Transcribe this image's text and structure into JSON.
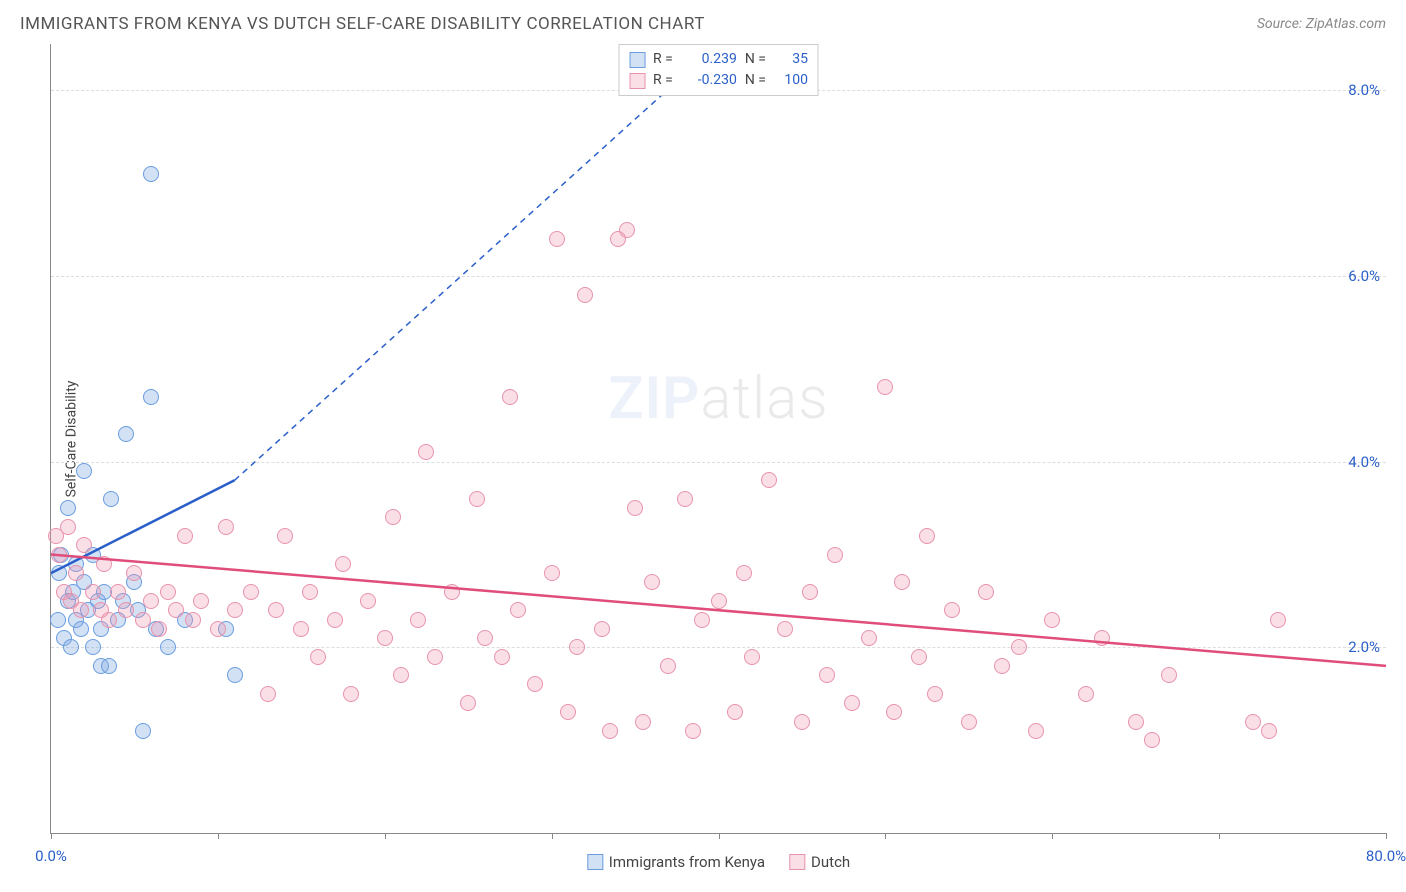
{
  "header": {
    "title": "IMMIGRANTS FROM KENYA VS DUTCH SELF-CARE DISABILITY CORRELATION CHART",
    "source_prefix": "Source: ",
    "source_name": "ZipAtlas.com"
  },
  "chart": {
    "type": "scatter",
    "ylabel": "Self-Care Disability",
    "xlim": [
      0,
      80
    ],
    "ylim": [
      0,
      8.5
    ],
    "background_color": "#ffffff",
    "grid_color": "#dddddd",
    "axis_color": "#888888",
    "label_color": "#444444",
    "xticks": [
      {
        "v": 0,
        "label": "0.0%",
        "show_label": true
      },
      {
        "v": 10,
        "label": "",
        "show_label": false
      },
      {
        "v": 20,
        "label": "",
        "show_label": false
      },
      {
        "v": 30,
        "label": "",
        "show_label": false
      },
      {
        "v": 40,
        "label": "",
        "show_label": false
      },
      {
        "v": 50,
        "label": "",
        "show_label": false
      },
      {
        "v": 60,
        "label": "",
        "show_label": false
      },
      {
        "v": 70,
        "label": "",
        "show_label": false
      },
      {
        "v": 80,
        "label": "80.0%",
        "show_label": true
      }
    ],
    "xtick_label_color": "#2a5fc9",
    "yticks": [
      {
        "v": 2.0,
        "label": "2.0%"
      },
      {
        "v": 4.0,
        "label": "4.0%"
      },
      {
        "v": 6.0,
        "label": "6.0%"
      },
      {
        "v": 8.0,
        "label": "8.0%"
      }
    ],
    "ytick_label_color": "#2a5fc9",
    "series": [
      {
        "name": "Immigrants from Kenya",
        "fill": "rgba(130,170,225,0.35)",
        "stroke": "#6a9de0",
        "line_color": "#2a5fc9",
        "trend": {
          "x1": 0,
          "y1": 2.8,
          "x2": 11,
          "y2": 3.8,
          "dash_to_x": 40,
          "dash_to_y": 8.5
        },
        "R": "0.239",
        "N": "35",
        "points": [
          [
            0.4,
            2.3
          ],
          [
            0.5,
            2.8
          ],
          [
            0.6,
            3.0
          ],
          [
            0.8,
            2.1
          ],
          [
            1.0,
            2.5
          ],
          [
            1.0,
            3.5
          ],
          [
            1.2,
            2.0
          ],
          [
            1.3,
            2.6
          ],
          [
            1.5,
            2.3
          ],
          [
            1.5,
            2.9
          ],
          [
            1.8,
            2.2
          ],
          [
            2.0,
            2.7
          ],
          [
            2.0,
            3.9
          ],
          [
            2.2,
            2.4
          ],
          [
            2.5,
            2.0
          ],
          [
            2.5,
            3.0
          ],
          [
            2.8,
            2.5
          ],
          [
            3.0,
            1.8
          ],
          [
            3.0,
            2.2
          ],
          [
            3.2,
            2.6
          ],
          [
            3.5,
            1.8
          ],
          [
            3.6,
            3.6
          ],
          [
            4.0,
            2.3
          ],
          [
            4.3,
            2.5
          ],
          [
            4.5,
            4.3
          ],
          [
            5.0,
            2.7
          ],
          [
            5.2,
            2.4
          ],
          [
            5.5,
            1.1
          ],
          [
            6.0,
            7.1
          ],
          [
            6.0,
            4.7
          ],
          [
            6.3,
            2.2
          ],
          [
            7.0,
            2.0
          ],
          [
            8.0,
            2.3
          ],
          [
            10.5,
            2.2
          ],
          [
            11.0,
            1.7
          ]
        ]
      },
      {
        "name": "Dutch",
        "fill": "rgba(240,150,175,0.30)",
        "stroke": "#e893ac",
        "line_color": "#e04d7b",
        "trend": {
          "x1": 0,
          "y1": 3.0,
          "x2": 80,
          "y2": 1.8
        },
        "R": "-0.230",
        "N": "100",
        "points": [
          [
            0.3,
            3.2
          ],
          [
            0.5,
            3.0
          ],
          [
            0.8,
            2.6
          ],
          [
            1.0,
            3.3
          ],
          [
            1.2,
            2.5
          ],
          [
            1.5,
            2.8
          ],
          [
            1.8,
            2.4
          ],
          [
            2.0,
            3.1
          ],
          [
            2.5,
            2.6
          ],
          [
            3.0,
            2.4
          ],
          [
            3.2,
            2.9
          ],
          [
            3.5,
            2.3
          ],
          [
            4.0,
            2.6
          ],
          [
            4.5,
            2.4
          ],
          [
            5.0,
            2.8
          ],
          [
            5.5,
            2.3
          ],
          [
            6.0,
            2.5
          ],
          [
            6.5,
            2.2
          ],
          [
            7.0,
            2.6
          ],
          [
            7.5,
            2.4
          ],
          [
            8.0,
            3.2
          ],
          [
            8.5,
            2.3
          ],
          [
            9.0,
            2.5
          ],
          [
            10.0,
            2.2
          ],
          [
            10.5,
            3.3
          ],
          [
            11.0,
            2.4
          ],
          [
            12.0,
            2.6
          ],
          [
            13.0,
            1.5
          ],
          [
            13.5,
            2.4
          ],
          [
            14.0,
            3.2
          ],
          [
            15.0,
            2.2
          ],
          [
            15.5,
            2.6
          ],
          [
            16.0,
            1.9
          ],
          [
            17.0,
            2.3
          ],
          [
            17.5,
            2.9
          ],
          [
            18.0,
            1.5
          ],
          [
            19.0,
            2.5
          ],
          [
            20.0,
            2.1
          ],
          [
            20.5,
            3.4
          ],
          [
            21.0,
            1.7
          ],
          [
            22.0,
            2.3
          ],
          [
            22.5,
            4.1
          ],
          [
            23.0,
            1.9
          ],
          [
            24.0,
            2.6
          ],
          [
            25.0,
            1.4
          ],
          [
            25.5,
            3.6
          ],
          [
            26.0,
            2.1
          ],
          [
            27.0,
            1.9
          ],
          [
            27.5,
            4.7
          ],
          [
            28.0,
            2.4
          ],
          [
            29.0,
            1.6
          ],
          [
            30.0,
            2.8
          ],
          [
            30.3,
            6.4
          ],
          [
            31.0,
            1.3
          ],
          [
            31.5,
            2.0
          ],
          [
            32.0,
            5.8
          ],
          [
            33.0,
            2.2
          ],
          [
            33.5,
            1.1
          ],
          [
            34.0,
            6.4
          ],
          [
            34.5,
            6.5
          ],
          [
            35.0,
            3.5
          ],
          [
            35.5,
            1.2
          ],
          [
            36.0,
            2.7
          ],
          [
            37.0,
            1.8
          ],
          [
            38.0,
            3.6
          ],
          [
            38.5,
            1.1
          ],
          [
            39.0,
            2.3
          ],
          [
            40.0,
            2.5
          ],
          [
            41.0,
            1.3
          ],
          [
            41.5,
            2.8
          ],
          [
            42.0,
            1.9
          ],
          [
            43.0,
            3.8
          ],
          [
            44.0,
            2.2
          ],
          [
            45.0,
            1.2
          ],
          [
            45.5,
            2.6
          ],
          [
            46.5,
            1.7
          ],
          [
            47.0,
            3.0
          ],
          [
            48.0,
            1.4
          ],
          [
            49.0,
            2.1
          ],
          [
            50.0,
            4.8
          ],
          [
            50.5,
            1.3
          ],
          [
            51.0,
            2.7
          ],
          [
            52.0,
            1.9
          ],
          [
            52.5,
            3.2
          ],
          [
            53.0,
            1.5
          ],
          [
            54.0,
            2.4
          ],
          [
            55.0,
            1.2
          ],
          [
            56.0,
            2.6
          ],
          [
            57.0,
            1.8
          ],
          [
            58.0,
            2.0
          ],
          [
            59.0,
            1.1
          ],
          [
            60.0,
            2.3
          ],
          [
            62.0,
            1.5
          ],
          [
            63.0,
            2.1
          ],
          [
            65.0,
            1.2
          ],
          [
            66.0,
            1.0
          ],
          [
            67.0,
            1.7
          ],
          [
            72.0,
            1.2
          ],
          [
            73.0,
            1.1
          ],
          [
            73.5,
            2.3
          ]
        ]
      }
    ],
    "correlation_legend": {
      "R_label": "R =",
      "N_label": "N ="
    },
    "bottom_legend_labels": [
      "Immigrants from Kenya",
      "Dutch"
    ],
    "watermark_zip": "ZIP",
    "watermark_atlas": "atlas"
  }
}
